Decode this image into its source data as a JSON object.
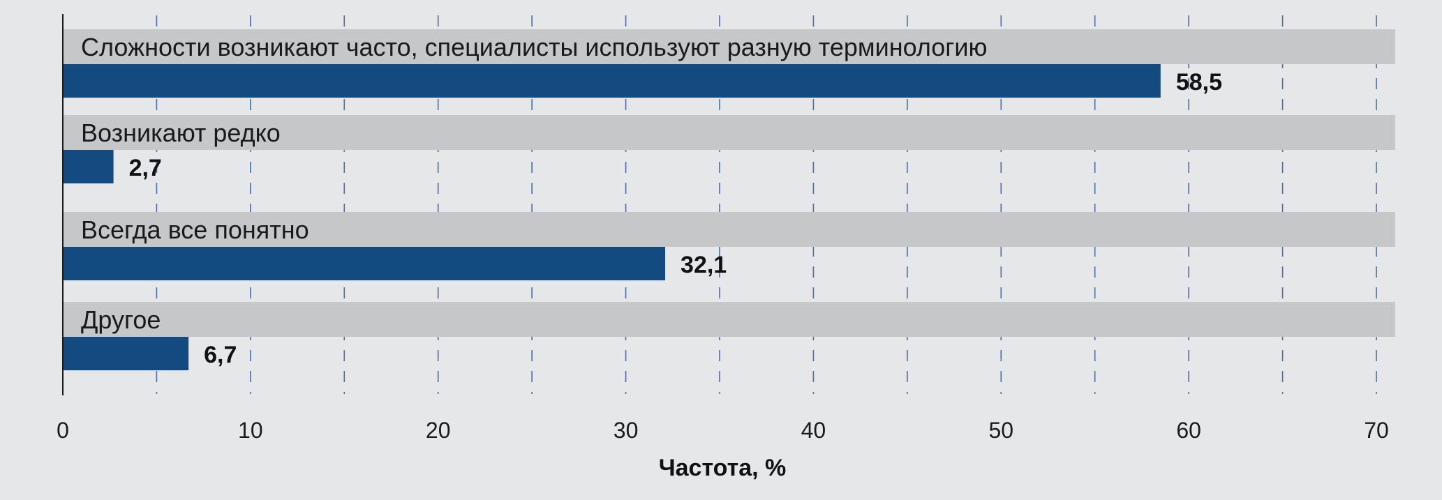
{
  "chart_data": {
    "type": "bar",
    "orientation": "horizontal",
    "categories": [
      "Сложности возникают часто, специалисты используют разную терминологию",
      "Возникают редко",
      "Всегда все понятно",
      "Другое"
    ],
    "values": [
      58.5,
      2.7,
      32.1,
      6.7
    ],
    "value_labels": [
      "58,5",
      "2,7",
      "32,1",
      "6,7"
    ],
    "xlabel": "Частота, %",
    "xlim": [
      0,
      71
    ],
    "xticks": [
      0,
      10,
      20,
      30,
      40,
      50,
      60,
      70
    ],
    "grid": "dashed vertical every 5",
    "colors": {
      "bar": "#134b80",
      "label_band": "#c6c7c9",
      "grid": "#4a6fa8",
      "background": "#e6e7e9"
    }
  }
}
